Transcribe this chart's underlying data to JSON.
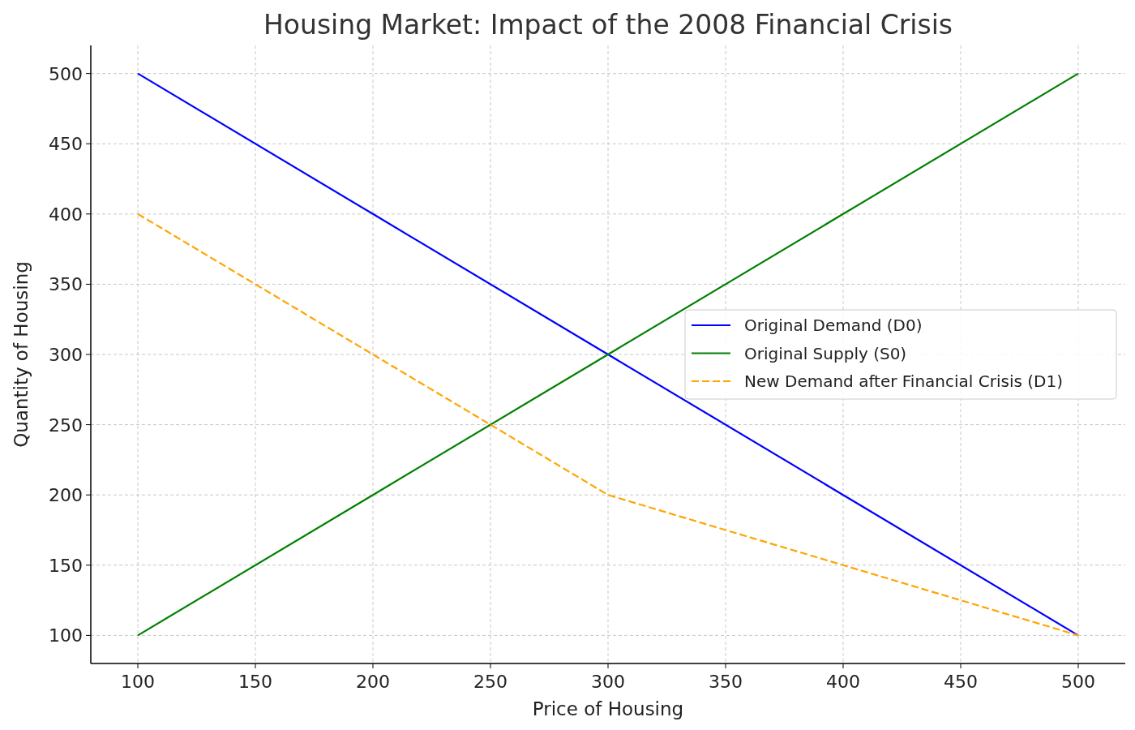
{
  "chart_data": {
    "type": "line",
    "title": "Housing Market: Impact of the 2008 Financial Crisis",
    "xlabel": "Price of Housing",
    "ylabel": "Quantity of Housing",
    "x": [
      100,
      200,
      300,
      400,
      500
    ],
    "series": [
      {
        "name": "Original Demand (D0)",
        "color": "#0000ff",
        "values": [
          500,
          400,
          300,
          200,
          100
        ]
      },
      {
        "name": "Original Supply (S0)",
        "color": "#008000",
        "values": [
          100,
          200,
          300,
          400,
          500
        ]
      },
      {
        "name": "New Demand after Financial Crisis (D1)",
        "color": "#ffa500",
        "values": [
          400,
          300,
          200,
          150,
          100
        ],
        "line_style": "dashed"
      }
    ],
    "xlim": [
      80,
      520
    ],
    "ylim": [
      80,
      520
    ],
    "xticks": [
      100,
      150,
      200,
      250,
      300,
      350,
      400,
      450,
      500
    ],
    "yticks": [
      100,
      150,
      200,
      250,
      300,
      350,
      400,
      450,
      500
    ],
    "grid": true,
    "legend": "right",
    "marker": "none",
    "line_style": "solid"
  }
}
